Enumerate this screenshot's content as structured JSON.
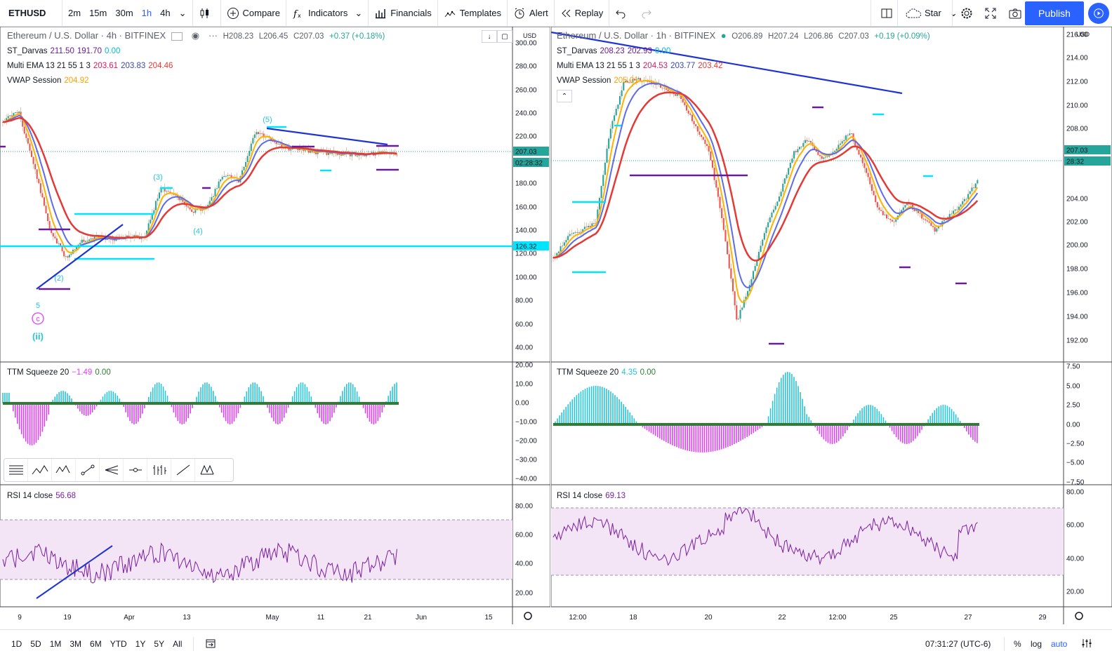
{
  "toolbar": {
    "symbol": "ETHUSD",
    "intervals": [
      "2m",
      "15m",
      "30m",
      "1h",
      "4h"
    ],
    "active_interval": "1h",
    "compare": "Compare",
    "indicators": "Indicators",
    "financials": "Financials",
    "templates": "Templates",
    "alert": "Alert",
    "replay": "Replay",
    "layout_name": "Star",
    "publish": "Publish"
  },
  "bottombar": {
    "ranges": [
      "1D",
      "5D",
      "1M",
      "3M",
      "6M",
      "YTD",
      "1Y",
      "5Y",
      "All"
    ],
    "clock": "07:31:27 (UTC-6)",
    "percent": "%",
    "log": "log",
    "auto": "auto"
  },
  "left": {
    "title": "Ethereum / U.S. Dollar · 4h · BITFINEX",
    "ohlc": {
      "h": "H208.23",
      "l": "L206.45",
      "c": "C207.03",
      "chg": "+0.37 (+0.18%)"
    },
    "st_darvas": {
      "name": "ST_Darvas",
      "v1": "211.50",
      "v2": "191.70",
      "v3": "0.00"
    },
    "multi_ema": {
      "name": "Multi EMA 13 21 55 1 3",
      "v1": "203.61",
      "v2": "203.83",
      "v3": "204.46"
    },
    "vwap": {
      "name": "VWAP Session",
      "v1": "204.92"
    },
    "ttm": {
      "name": "TTM Squeeze 20",
      "v1": "−1.49",
      "v2": "0.00"
    },
    "rsi": {
      "name": "RSI 14 close",
      "v1": "56.68"
    },
    "currency": "USD",
    "price_ticks": [
      "300.00",
      "280.00",
      "260.00",
      "240.00",
      "220.00",
      "207.03",
      "02:28:32",
      "180.00",
      "160.00",
      "140.00",
      "126.32",
      "120.00",
      "100.00",
      "80.00",
      "60.00",
      "40.00"
    ],
    "ttm_ticks": [
      "20.00",
      "10.00",
      "0.00",
      "−10.00",
      "−20.00",
      "−30.00",
      "−40.00"
    ],
    "rsi_ticks": [
      "80.00",
      "60.00",
      "40.00",
      "20.00"
    ],
    "time_ticks": [
      "9",
      "19",
      "Apr",
      "13",
      "May",
      "11",
      "21",
      "Jun",
      "15"
    ],
    "wave_labels": [
      "(2)",
      "(3)",
      "(4)",
      "(5)",
      "5",
      "c",
      "(ii)"
    ]
  },
  "right": {
    "title": "Ethereum / U.S. Dollar · 1h · BITFINEX",
    "ohlc": {
      "o": "O206.89",
      "h": "H207.24",
      "l": "L206.86",
      "c": "C207.03",
      "chg": "+0.19 (+0.09%)"
    },
    "st_darvas": {
      "name": "ST_Darvas",
      "v1": "208.23",
      "v2": "202.93",
      "v3": "0.00"
    },
    "multi_ema": {
      "name": "Multi EMA 13 21 55 1 3",
      "v1": "204.53",
      "v2": "203.77",
      "v3": "203.42"
    },
    "vwap": {
      "name": "VWAP Session",
      "v1": "205.01"
    },
    "ttm": {
      "name": "TTM Squeeze 20",
      "v1": "4.35",
      "v2": "0.00"
    },
    "rsi": {
      "name": "RSI 14 close",
      "v1": "69.13"
    },
    "currency": "USD",
    "price_ticks": [
      "216.00",
      "214.00",
      "212.00",
      "210.00",
      "208.00",
      "207.03",
      "28:32",
      "204.00",
      "202.00",
      "200.00",
      "198.00",
      "196.00",
      "194.00",
      "192.00"
    ],
    "ttm_ticks": [
      "7.50",
      "5.00",
      "2.50",
      "0.00",
      "−2.50",
      "−5.00",
      "−7.50"
    ],
    "rsi_ticks": [
      "80.00",
      "60.00",
      "40.00",
      "20.00"
    ],
    "time_ticks": [
      "12:00",
      "18",
      "20",
      "22",
      "12:00",
      "25",
      "27",
      "29"
    ]
  },
  "colors": {
    "ema_fast": "#e53935",
    "ema_mid": "#5c6bf0",
    "ema_slow": "#f4511e",
    "vwap": "#ffb300",
    "darvas": "#00e5ff",
    "trend": "#1e33d6",
    "rsi": "#7b1fa2",
    "ttm_up": "#26c6da",
    "ttm_down": "#e040fb",
    "accent": "#2962ff"
  }
}
